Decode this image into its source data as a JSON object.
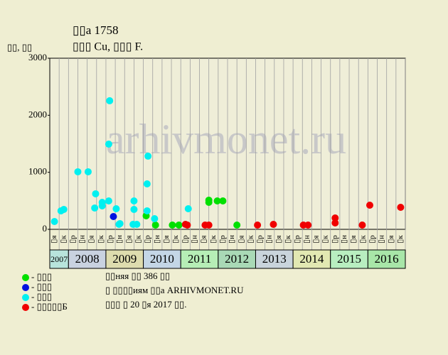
{
  "chart_data": {
    "type": "scatter",
    "title": "▯▯а 1758",
    "subtitle": "▯▯▯ Cu, ▯▯▯ F.",
    "y_label": "▯▯, ▯▯",
    "watermark": "arhivmonet.ru",
    "notes": [
      "▯▯няя ▯▯ 386 ▯▯",
      "▯ ▯▯▯▯иям ▯▯а ARHIVMONET.RU",
      "▯▯▯ ▯ 20 ▯я 2017 ▯▯."
    ],
    "xlim": [
      0,
      38
    ],
    "xticks": [
      {
        "value": 0,
        "label": "2007"
      },
      {
        "value": 2,
        "label": "2008"
      },
      {
        "value": 6,
        "label": "2009"
      },
      {
        "value": 10,
        "label": "2010"
      },
      {
        "value": 14,
        "label": "2011"
      },
      {
        "value": 18,
        "label": "2012"
      },
      {
        "value": 22,
        "label": "2013"
      },
      {
        "value": 26,
        "label": "2014"
      },
      {
        "value": 30,
        "label": "2015"
      },
      {
        "value": 34,
        "label": "2016"
      }
    ],
    "xtick_colors": [
      "#b8e4dc",
      "#c9d2e0",
      "#dedcae",
      "#c4d6e6",
      "#b6eeb6",
      "#a9d9b6",
      "#c9d4dc",
      "#e2e8b2",
      "#b8eec0",
      "#a8e6a8"
    ],
    "quarter_labels": [
      "▯я",
      "▯к",
      "▯р",
      "▯н",
      "▯я",
      "▯к",
      "▯р",
      "▯н",
      "▯я",
      "▯к",
      "▯р",
      "▯н",
      "▯я",
      "▯к",
      "▯р",
      "▯н",
      "▯я",
      "▯к",
      "▯р",
      "▯н",
      "▯я",
      "▯к",
      "▯р",
      "▯н",
      "▯я",
      "▯к",
      "▯р",
      "▯н",
      "▯я",
      "▯к",
      "▯р",
      "▯н",
      "▯я",
      "▯к",
      "▯р",
      "▯н",
      "▯я",
      "▯к"
    ],
    "ylim": [
      0,
      3000
    ],
    "yticks": [
      0,
      1000,
      2000,
      3000
    ],
    "series": [
      {
        "name": "- ▯▯▯",
        "color": "#00e000",
        "x": [
          10.3,
          11.3,
          13.1,
          13.8,
          17.0,
          17.0,
          17.9,
          18.5,
          20.0
        ],
        "values": [
          237,
          75,
          75,
          75,
          511,
          473,
          498,
          498,
          75
        ]
      },
      {
        "name": "- ▯▯▯",
        "color": "#0010e0",
        "x": [
          6.8
        ],
        "values": [
          224
        ]
      },
      {
        "name": "- ▯▯▯",
        "color": "#00f0f0",
        "x": [
          0.5,
          1.2,
          1.5,
          3.0,
          4.1,
          4.9,
          4.8,
          5.6,
          5.6,
          6.3,
          6.4,
          6.3,
          7.1,
          7.4,
          7.5,
          8.9,
          9.3,
          9.0,
          9.0,
          10.5,
          10.4,
          10.4,
          11.2,
          14.8
        ],
        "values": [
          137,
          324,
          349,
          1009,
          1009,
          623,
          374,
          473,
          411,
          498,
          2254,
          1494,
          361,
          87,
          100,
          87,
          87,
          498,
          349,
          1283,
          797,
          324,
          187,
          361
        ]
      },
      {
        "name": "- ▯▯▯▯▯Б",
        "color": "#f00000",
        "x": [
          14.5,
          14.7,
          16.6,
          17.0,
          22.2,
          23.9,
          27.1,
          27.6,
          30.5,
          30.5,
          33.4,
          34.2,
          37.5
        ],
        "values": [
          87,
          75,
          75,
          75,
          75,
          87,
          75,
          75,
          199,
          112,
          75,
          423,
          386
        ]
      }
    ]
  }
}
